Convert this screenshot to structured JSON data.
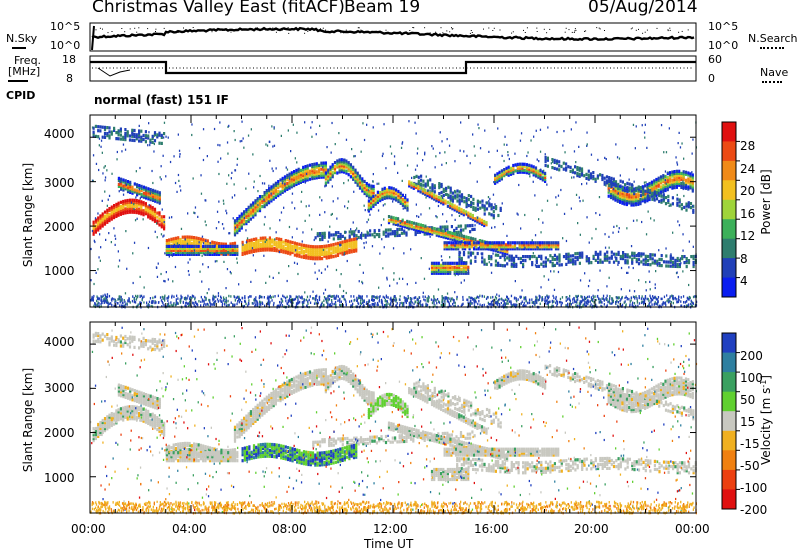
{
  "header": {
    "title": "Christmas Valley East (fitACF)",
    "beam": "Beam 19",
    "date": "05/Aug/2014"
  },
  "summary_labels": {
    "nsky": "N.Sky",
    "nsky_ticks": [
      "10^5",
      "10^0"
    ],
    "nsearch": "N.Search",
    "nsearch_ticks": [
      "10^5",
      "10^0"
    ],
    "freq_line1": "Freq.",
    "freq_line2": "[MHz]",
    "freq_ticks": [
      "18",
      "8"
    ],
    "nave": "Nave",
    "nave_ticks": [
      "60",
      "0"
    ],
    "cpid": "CPID",
    "cpid_value": "normal (fast) 151 IF"
  },
  "axes": {
    "xlabel": "Time UT",
    "x_ticks": [
      "00:00",
      "04:00",
      "08:00",
      "12:00",
      "16:00",
      "20:00",
      "00:00"
    ],
    "ylabel": "Slant Range [km]",
    "y_ticks": [
      "1000",
      "2000",
      "3000",
      "4000"
    ]
  },
  "colorbars": {
    "power": {
      "label": "Power [dB]",
      "ticks": [
        "4",
        "8",
        "12",
        "16",
        "20",
        "24",
        "28"
      ],
      "colors": [
        "#0a1ef0",
        "#2040b8",
        "#2e7d6e",
        "#3cb05a",
        "#9fd43a",
        "#f2c020",
        "#f08a18",
        "#ec4a14",
        "#e01010"
      ]
    },
    "velocity": {
      "label": "Velocity [m s^-1]",
      "ticks": [
        "200",
        "100",
        "50",
        "15",
        "-15",
        "-50",
        "-100",
        "-200"
      ],
      "colors": [
        "#2040c0",
        "#2e7fa0",
        "#3aa060",
        "#60d030",
        "#c8c8c0",
        "#f0b020",
        "#f08010",
        "#ec4010",
        "#e01010"
      ]
    }
  },
  "chart_data": [
    {
      "type": "heatmap",
      "name": "Power",
      "x_range_hours": [
        0,
        24
      ],
      "y_range_km": [
        180,
        4500
      ],
      "y_ticks": [
        1000,
        2000,
        3000,
        4000
      ],
      "x_ticks_hours": [
        0,
        4,
        8,
        12,
        16,
        20,
        24
      ],
      "color_scale_db": [
        0,
        32
      ]
    },
    {
      "type": "heatmap",
      "name": "Velocity",
      "x_range_hours": [
        0,
        24
      ],
      "y_range_km": [
        180,
        4500
      ],
      "y_ticks": [
        1000,
        2000,
        3000,
        4000
      ],
      "x_ticks_hours": [
        0,
        4,
        8,
        12,
        16,
        20,
        24
      ],
      "color_scale_ms": [
        -250,
        250
      ]
    }
  ]
}
